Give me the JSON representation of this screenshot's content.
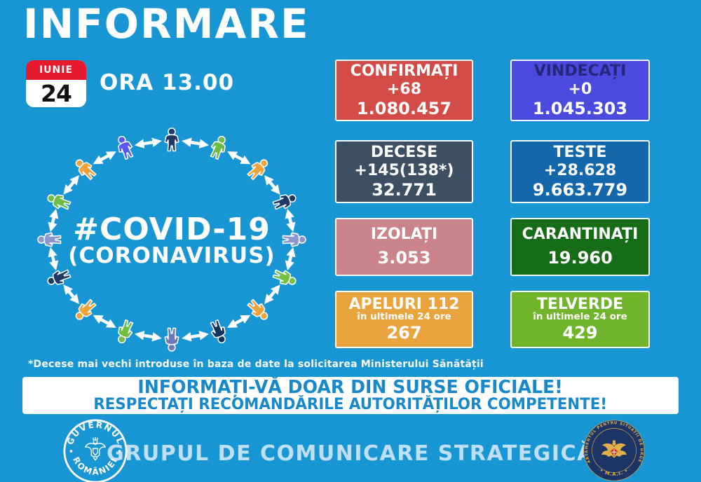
{
  "page": {
    "title": "INFORMARE",
    "time": "ORA 13.00"
  },
  "date_badge": {
    "month": "IUNIE",
    "day": "24"
  },
  "covid_circle": {
    "line1": "#COVID-19",
    "line2": "(CORONAVIRUS)",
    "person_colors": [
      "#1F3864",
      "#6EBE45",
      "#F0A23C",
      "#1F3864",
      "#8A98CE",
      "#76C143",
      "#F0A23C",
      "#16335F",
      "#6D79B8",
      "#6EBE45",
      "#F0A23C",
      "#1F3864",
      "#8A98CE",
      "#6EBE45",
      "#F0A23C",
      "#5A5AF2"
    ]
  },
  "stat_cards": [
    {
      "title": "CONFIRMAȚI",
      "delta": "+68",
      "total": "1.080.457",
      "bg": "#D24B47",
      "title_color": "#FFFFFF"
    },
    {
      "title": "VINDECAȚI",
      "delta": "+0",
      "total": "1.045.303",
      "bg": "#4A4ADF",
      "title_color": "#232878"
    },
    {
      "title": "DECESE",
      "delta": "+145(138*)",
      "total": "32.771",
      "bg": "#3D4F63",
      "title_color": "#FFFFFF"
    },
    {
      "title": "TESTE",
      "delta": "+28.628",
      "total": "9.663.779",
      "bg": "#1367AA",
      "title_color": "#FFFFFF"
    },
    {
      "title": "IZOLAȚI",
      "total": "3.053",
      "bg": "#CB8489",
      "title_color": "#FFFFFF"
    },
    {
      "title": "CARANTINAȚI",
      "total": "19.960",
      "bg": "#176C17",
      "title_color": "#FFFFFF"
    },
    {
      "title": "APELURI 112",
      "subtitle": "în ultimele 24 ore",
      "total": "267",
      "bg": "#EAA43D",
      "title_color": "#FFFFFF"
    },
    {
      "title": "TELVERDE",
      "subtitle": "în ultimele 24 ore",
      "total": "429",
      "bg": "#70B42C",
      "title_color": "#FFFFFF"
    }
  ],
  "footnote": "*Decese mai vechi introduse în baza de date la solicitarea Ministerului Sănătății",
  "banner": {
    "line1": "INFORMAȚI-VĂ DOAR DIN SURSE OFICIALE!",
    "line2": "RESPECTAȚI RECOMANDĂRILE AUTORITĂȚILOR COMPETENTE!"
  },
  "footer": {
    "label": "GRUPUL DE COMUNICARE STRATEGICĂ",
    "gov_seal": {
      "top": "GUVERNUL",
      "bottom": "ROMÂNIEI"
    },
    "dsu_seal": {
      "ring": "DEPARTAMENTUL PENTRU SITUAȚII DE URGENȚĂ",
      "bottom": "• M.A.I. •"
    }
  },
  "colors": {
    "background": "#1796D3",
    "banner_text": "#1789CB",
    "footer_text": "#BFE0F2",
    "date_red": "#E6192E",
    "arrow_white": "#FFFFFF",
    "dsu_navy": "#1C3566",
    "dsu_gold": "#E2AF48"
  }
}
